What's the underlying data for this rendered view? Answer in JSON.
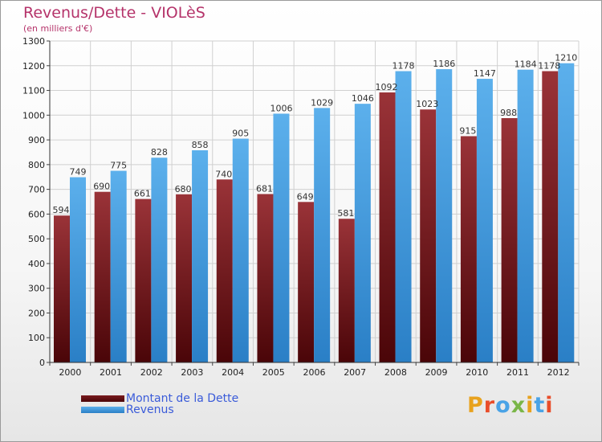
{
  "header": {
    "title": "Revenus/Dette - VIOLèS",
    "subtitle": "(en milliers d'€)"
  },
  "chart_data": {
    "type": "bar",
    "categories": [
      "2000",
      "2001",
      "2002",
      "2003",
      "2004",
      "2005",
      "2006",
      "2007",
      "2008",
      "2009",
      "2010",
      "2011",
      "2012"
    ],
    "series": [
      {
        "name": "Montant de la Dette",
        "color": "#8b2a2e",
        "values": [
          594,
          690,
          661,
          680,
          740,
          681,
          649,
          581,
          1092,
          1023,
          915,
          988,
          1178
        ],
        "labels": [
          "594",
          "690",
          "661",
          "680",
          "740",
          "681",
          "649",
          "581",
          "1092",
          "1023",
          "915",
          "988",
          "1178"
        ]
      },
      {
        "name": "Revenus",
        "color": "#4aa3e6",
        "values": [
          749,
          775,
          828,
          858,
          905,
          1006,
          1029,
          1046,
          1178,
          1186,
          1147,
          1184,
          1210
        ],
        "labels": [
          "749",
          "775",
          "828",
          "858",
          "905",
          "1006",
          "1029",
          "1046",
          "1178",
          "1186",
          "1147",
          "1184",
          "1210"
        ]
      }
    ],
    "ylim": [
      0,
      1300
    ],
    "yticks": [
      0,
      100,
      200,
      300,
      400,
      500,
      600,
      700,
      800,
      900,
      1000,
      1100,
      1200,
      1300
    ],
    "grid": true,
    "legend_position": "bottom-left"
  },
  "legend": {
    "debt_label": "Montant de la Dette",
    "revenue_label": "Revenus"
  },
  "logo": {
    "text": "Proxiti",
    "colors": [
      "#e8a21e",
      "#e94d2a",
      "#4aa3e6",
      "#7ab648",
      "#e8a21e",
      "#4aa3e6",
      "#e94d2a"
    ]
  }
}
